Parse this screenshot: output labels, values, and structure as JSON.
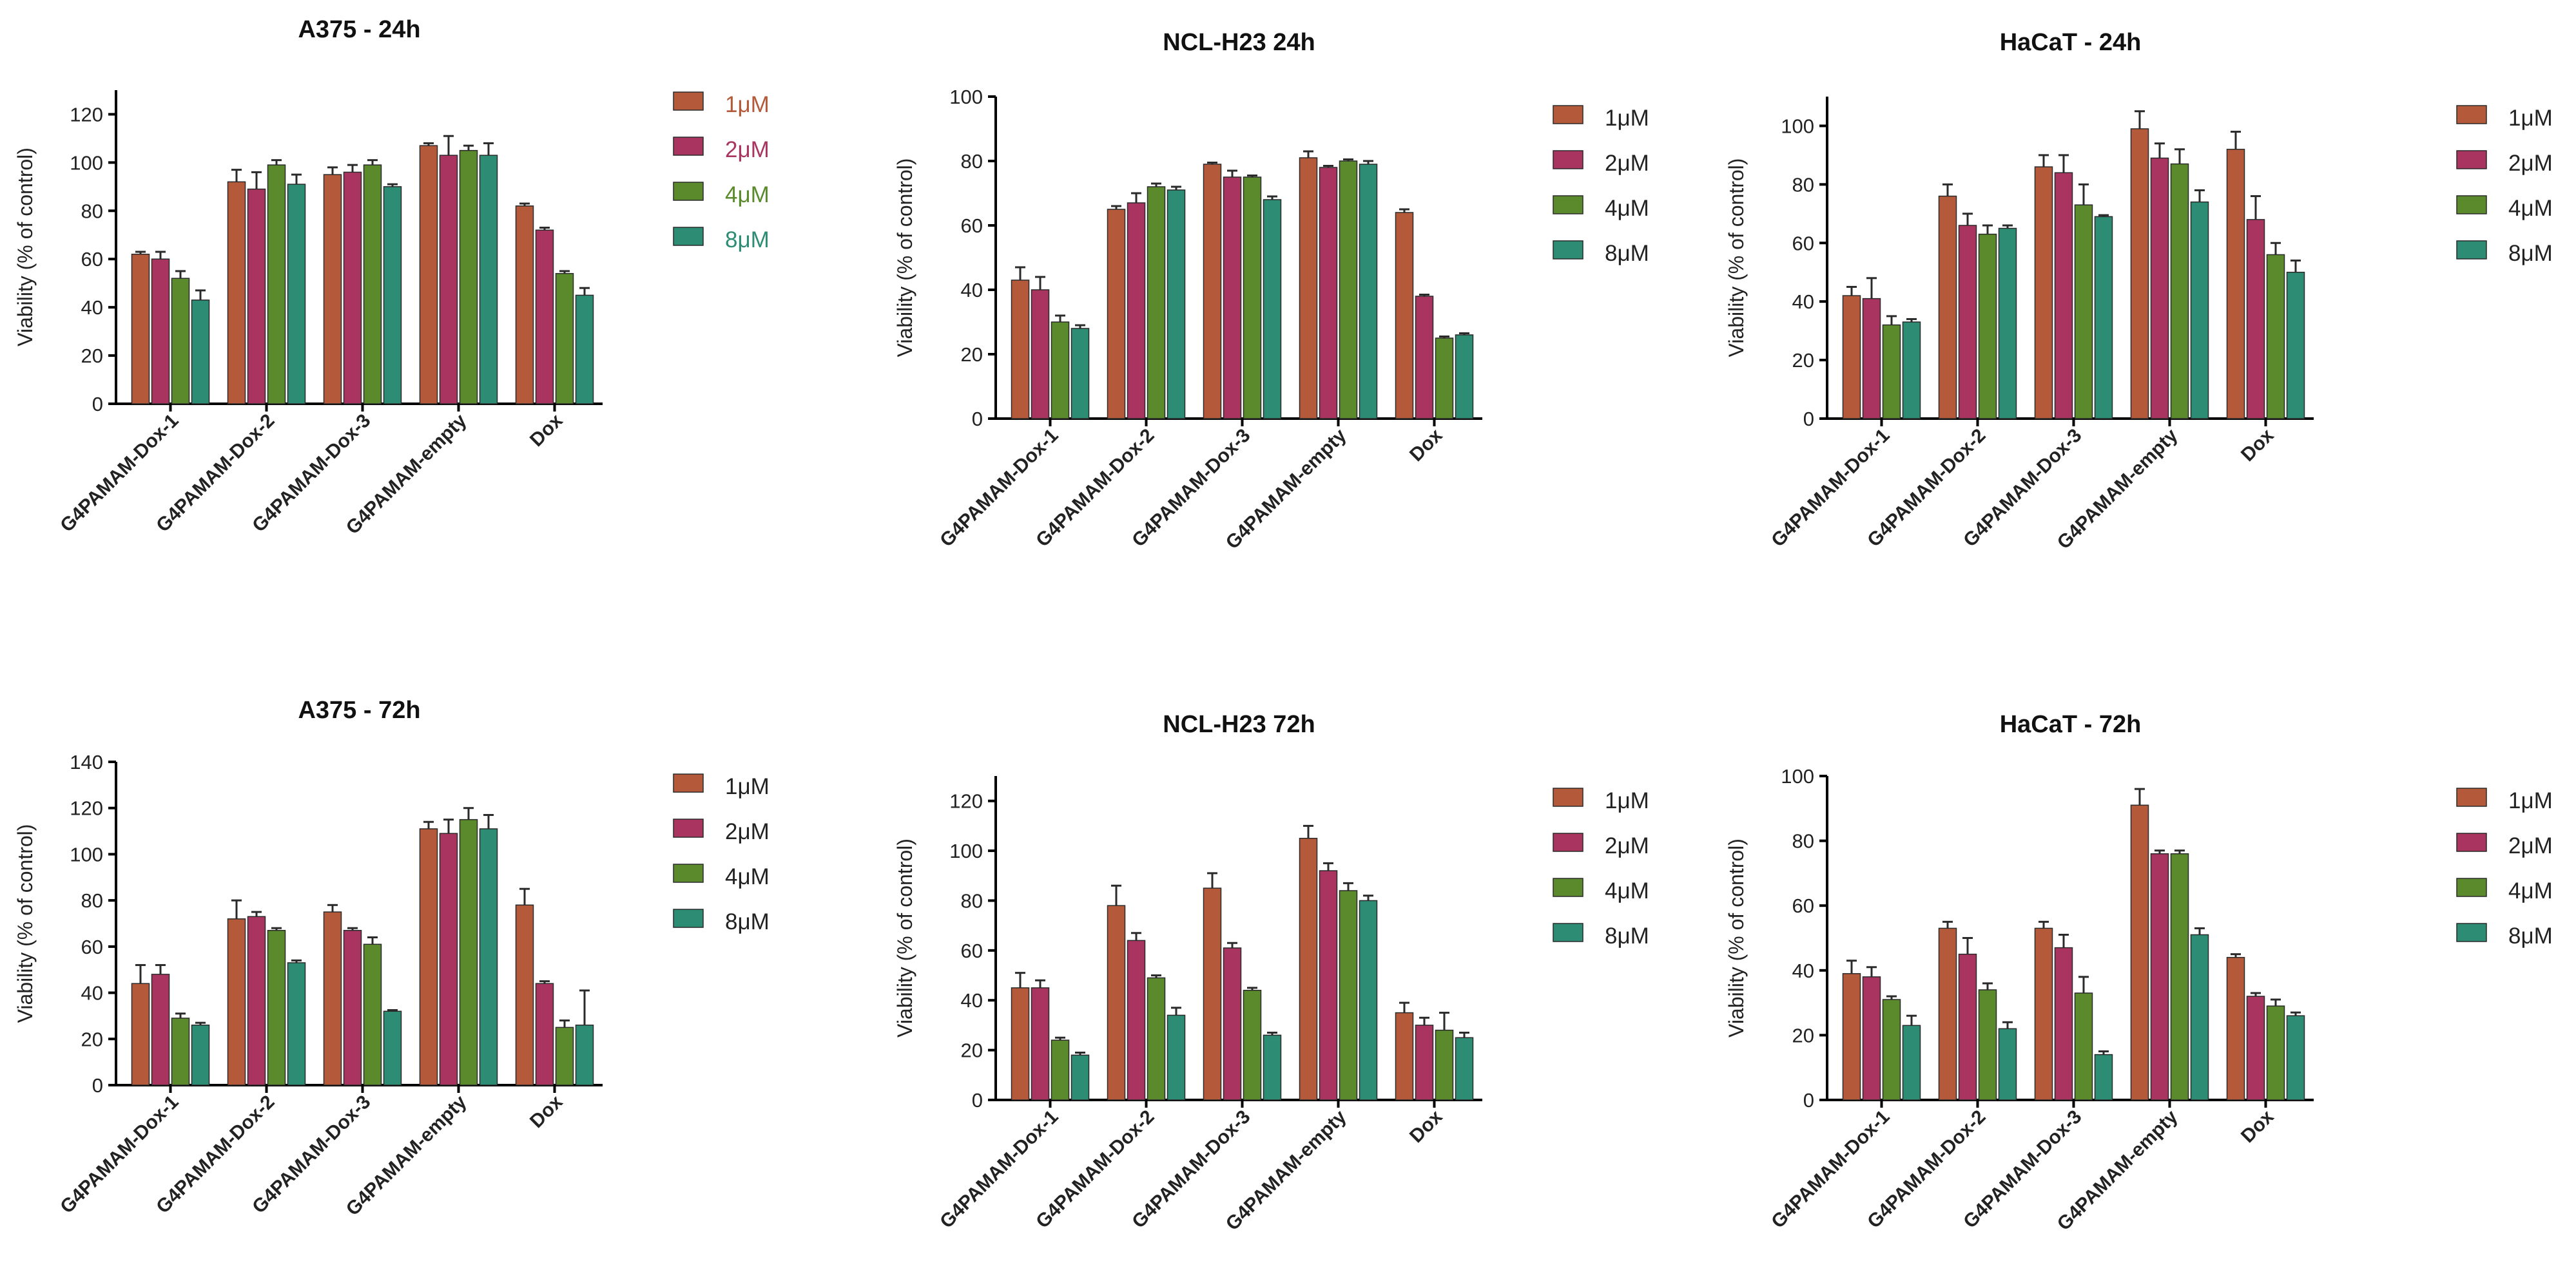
{
  "colors": {
    "series": [
      "#b45a3a",
      "#a8345f",
      "#5b8a2c",
      "#2d8c74"
    ],
    "legend_text_first_panel": [
      "#b45a3a",
      "#a8345f",
      "#5b8a2c",
      "#2d8c74"
    ],
    "axis": "#000000"
  },
  "chart_data": [
    {
      "type": "bar",
      "title": "A375 - 24h",
      "xlabel": "",
      "ylabel": "Viability (% of control)",
      "ylim": [
        0,
        130
      ],
      "yticks": [
        0,
        20,
        40,
        60,
        80,
        100,
        120
      ],
      "categories": [
        "G4PAMAM-Dox-1",
        "G4PAMAM-Dox-2",
        "G4PAMAM-Dox-3",
        "G4PAMAM-empty",
        "Dox"
      ],
      "legend_colored_text": true,
      "series": [
        {
          "name": "1μM",
          "values": [
            62,
            92,
            95,
            107,
            82
          ],
          "errors": [
            1,
            5,
            3,
            1,
            1
          ]
        },
        {
          "name": "2μM",
          "values": [
            60,
            89,
            96,
            103,
            72
          ],
          "errors": [
            3,
            7,
            3,
            8,
            1
          ]
        },
        {
          "name": "4μM",
          "values": [
            52,
            99,
            99,
            105,
            54
          ],
          "errors": [
            3,
            2,
            2,
            2,
            1
          ]
        },
        {
          "name": "8μM",
          "values": [
            43,
            91,
            90,
            103,
            45
          ],
          "errors": [
            4,
            4,
            1,
            5,
            3
          ]
        }
      ]
    },
    {
      "type": "bar",
      "title": "NCL-H23  24h",
      "xlabel": "",
      "ylabel": "Viability (% of control)",
      "ylim": [
        0,
        100
      ],
      "yticks": [
        0,
        20,
        40,
        60,
        80,
        100
      ],
      "categories": [
        "G4PAMAM-Dox-1",
        "G4PAMAM-Dox-2",
        "G4PAMAM-Dox-3",
        "G4PAMAM-empty",
        "Dox"
      ],
      "legend_colored_text": false,
      "series": [
        {
          "name": "1μM",
          "values": [
            43,
            65,
            79,
            81,
            64
          ],
          "errors": [
            4,
            1,
            0.5,
            2,
            1
          ]
        },
        {
          "name": "2μM",
          "values": [
            40,
            67,
            75,
            78,
            38
          ],
          "errors": [
            4,
            3,
            2,
            0.5,
            0.5
          ]
        },
        {
          "name": "4μM",
          "values": [
            30,
            72,
            75,
            80,
            25
          ],
          "errors": [
            2,
            1,
            0.5,
            0.5,
            0.5
          ]
        },
        {
          "name": "8μM",
          "values": [
            28,
            71,
            68,
            79,
            26
          ],
          "errors": [
            1,
            1,
            1,
            1,
            0.5
          ]
        }
      ]
    },
    {
      "type": "bar",
      "title": "HaCaT - 24h",
      "xlabel": "",
      "ylabel": "Viability (% of control)",
      "ylim": [
        0,
        110
      ],
      "yticks": [
        0,
        20,
        40,
        60,
        80,
        100
      ],
      "categories": [
        "G4PAMAM-Dox-1",
        "G4PAMAM-Dox-2",
        "G4PAMAM-Dox-3",
        "G4PAMAM-empty",
        "Dox"
      ],
      "legend_colored_text": false,
      "series": [
        {
          "name": "1μM",
          "values": [
            42,
            76,
            86,
            99,
            92
          ],
          "errors": [
            3,
            4,
            4,
            6,
            6
          ]
        },
        {
          "name": "2μM",
          "values": [
            41,
            66,
            84,
            89,
            68
          ],
          "errors": [
            7,
            4,
            6,
            5,
            8
          ]
        },
        {
          "name": "4μM",
          "values": [
            32,
            63,
            73,
            87,
            56
          ],
          "errors": [
            3,
            3,
            7,
            5,
            4
          ]
        },
        {
          "name": "8μM",
          "values": [
            33,
            65,
            69,
            74,
            50
          ],
          "errors": [
            1,
            1,
            0.5,
            4,
            4
          ]
        }
      ]
    },
    {
      "type": "bar",
      "title": "A375 - 72h",
      "xlabel": "",
      "ylabel": "Viability (% of control)",
      "ylim": [
        0,
        140
      ],
      "yticks": [
        0,
        20,
        40,
        60,
        80,
        100,
        120,
        140
      ],
      "categories": [
        "G4PAMAM-Dox-1",
        "G4PAMAM-Dox-2",
        "G4PAMAM-Dox-3",
        "G4PAMAM-empty",
        "Dox"
      ],
      "legend_colored_text": false,
      "series": [
        {
          "name": "1μM",
          "values": [
            44,
            72,
            75,
            111,
            78
          ],
          "errors": [
            8,
            8,
            3,
            3,
            7
          ]
        },
        {
          "name": "2μM",
          "values": [
            48,
            73,
            67,
            109,
            44
          ],
          "errors": [
            4,
            2,
            1,
            6,
            1
          ]
        },
        {
          "name": "4μM",
          "values": [
            29,
            67,
            61,
            115,
            25
          ],
          "errors": [
            2,
            1,
            3,
            5,
            3
          ]
        },
        {
          "name": "8μM",
          "values": [
            26,
            53,
            32,
            111,
            26
          ],
          "errors": [
            1,
            1,
            0.5,
            6,
            15
          ]
        }
      ]
    },
    {
      "type": "bar",
      "title": "NCL-H23 72h",
      "xlabel": "",
      "ylabel": "Viability (% of control)",
      "ylim": [
        0,
        130
      ],
      "yticks": [
        0,
        20,
        40,
        60,
        80,
        100,
        120
      ],
      "categories": [
        "G4PAMAM-Dox-1",
        "G4PAMAM-Dox-2",
        "G4PAMAM-Dox-3",
        "G4PAMAM-empty",
        "Dox"
      ],
      "legend_colored_text": false,
      "series": [
        {
          "name": "1μM",
          "values": [
            45,
            78,
            85,
            105,
            35
          ],
          "errors": [
            6,
            8,
            6,
            5,
            4
          ]
        },
        {
          "name": "2μM",
          "values": [
            45,
            64,
            61,
            92,
            30
          ],
          "errors": [
            3,
            3,
            2,
            3,
            3
          ]
        },
        {
          "name": "4μM",
          "values": [
            24,
            49,
            44,
            84,
            28
          ],
          "errors": [
            1,
            1,
            1,
            3,
            7
          ]
        },
        {
          "name": "8μM",
          "values": [
            18,
            34,
            26,
            80,
            25
          ],
          "errors": [
            1,
            3,
            1,
            2,
            2
          ]
        }
      ]
    },
    {
      "type": "bar",
      "title": "HaCaT - 72h",
      "xlabel": "",
      "ylabel": "Viability (% of control)",
      "ylim": [
        0,
        100
      ],
      "yticks": [
        0,
        20,
        40,
        60,
        80,
        100
      ],
      "categories": [
        "G4PAMAM-Dox-1",
        "G4PAMAM-Dox-2",
        "G4PAMAM-Dox-3",
        "G4PAMAM-empty",
        "Dox"
      ],
      "legend_colored_text": false,
      "series": [
        {
          "name": "1μM",
          "values": [
            39,
            53,
            53,
            91,
            44
          ],
          "errors": [
            4,
            2,
            2,
            5,
            1
          ]
        },
        {
          "name": "2μM",
          "values": [
            38,
            45,
            47,
            76,
            32
          ],
          "errors": [
            3,
            5,
            4,
            1,
            1
          ]
        },
        {
          "name": "4μM",
          "values": [
            31,
            34,
            33,
            76,
            29
          ],
          "errors": [
            1,
            2,
            5,
            1,
            2
          ]
        },
        {
          "name": "8μM",
          "values": [
            23,
            22,
            14,
            51,
            26
          ],
          "errors": [
            3,
            2,
            1,
            2,
            1
          ]
        }
      ]
    }
  ]
}
